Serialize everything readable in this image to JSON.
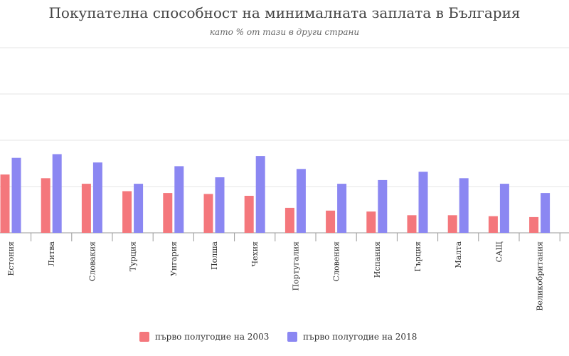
{
  "title": "Покупателна способност на минималната заплата в България",
  "subtitle": "като % от тази в други страни",
  "colors": {
    "s2003": "#f4777c",
    "s2018": "#8b87f2",
    "grid": "#e6e6e6",
    "axis": "#999999"
  },
  "chart_data": {
    "type": "bar",
    "categories": [
      "Естония",
      "Литва",
      "Словакия",
      "Турция",
      "Унгария",
      "Полша",
      "Чехия",
      "Португалия",
      "Словения",
      "Испания",
      "Гърция",
      "Малта",
      "САЩ",
      "Великобритания"
    ],
    "series": [
      {
        "name": "първо полугодие на 2003",
        "values": [
          63,
          59,
          53,
          45,
          43,
          42,
          40,
          27,
          24,
          23,
          19,
          19,
          18,
          17
        ]
      },
      {
        "name": "първо полугодие на 2018",
        "values": [
          81,
          85,
          76,
          53,
          72,
          60,
          83,
          69,
          53,
          57,
          66,
          59,
          53,
          43
        ]
      }
    ],
    "ylim": [
      0,
      200
    ],
    "grid": true,
    "legend": "bottom"
  }
}
